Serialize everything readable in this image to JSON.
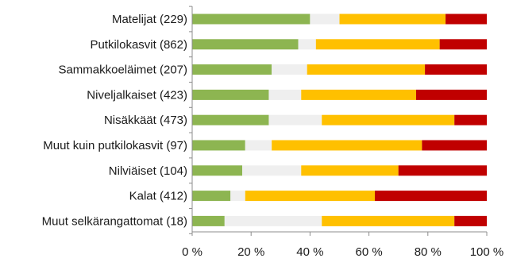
{
  "chart_data": {
    "type": "bar",
    "orientation": "horizontal",
    "stacked": true,
    "percent_stacked": true,
    "categories": [
      "Matelijat (229)",
      "Putkilokasvit (862)",
      "Sammakkoeläimet (207)",
      "Niveljalkaiset (423)",
      "Nisäkkäät (473)",
      "Muut kuin putkilokasvit (97)",
      "Nilviäiset (104)",
      "Kalat (412)",
      "Muut selkärangattomat (18)"
    ],
    "series": [
      {
        "color": "#8db551",
        "values": [
          40,
          36,
          27,
          26,
          26,
          18,
          17,
          13,
          11
        ]
      },
      {
        "color": "#efefef",
        "values": [
          10,
          6,
          12,
          11,
          18,
          9,
          20,
          5,
          33
        ]
      },
      {
        "color": "#ffc000",
        "values": [
          36,
          42,
          40,
          39,
          45,
          51,
          33,
          44,
          45
        ]
      },
      {
        "color": "#c00000",
        "values": [
          14,
          16,
          21,
          24,
          11,
          22,
          30,
          38,
          11
        ]
      }
    ],
    "x_ticks": [
      "0 %",
      "20 %",
      "40 %",
      "60 %",
      "80 %",
      "100 %"
    ],
    "xlim": [
      0,
      100
    ],
    "xlabel": "",
    "ylabel": "",
    "title": "",
    "grid": false,
    "legend": "none"
  }
}
